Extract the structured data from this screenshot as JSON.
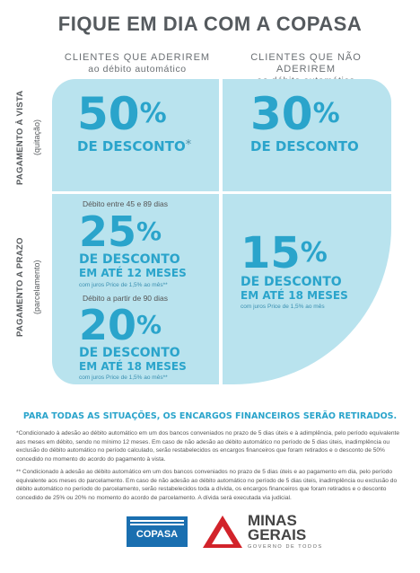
{
  "title": "FIQUE EM DIA COM A COPASA",
  "columns": [
    {
      "line1": "CLIENTES QUE ADERIREM",
      "line2": "ao débito automático"
    },
    {
      "line1": "CLIENTES QUE NÃO ADERIREM",
      "line2": "ao débito automático"
    }
  ],
  "rows": [
    {
      "label": "PAGAMENTO À VISTA",
      "sublabel": "(quitação)"
    },
    {
      "label": "PAGAMENTO A PRAZO",
      "sublabel": "(parcelamento)"
    }
  ],
  "cells": {
    "vista_adere": {
      "pct": "50",
      "sign": "%",
      "desc": "DE DESCONTO",
      "star": "*"
    },
    "vista_nao": {
      "pct": "30",
      "sign": "%",
      "desc": "DE DESCONTO"
    },
    "prazo_adere_1": {
      "note": "Débito entre 45 e 89 dias",
      "pct": "25",
      "sign": "%",
      "desc": "DE DESCONTO",
      "term": "EM ATÉ 12 MESES",
      "juros": "com juros Price de 1,5% ao mês**"
    },
    "prazo_adere_2": {
      "note": "Débito a partir de 90 dias",
      "pct": "20",
      "sign": "%",
      "desc": "DE DESCONTO",
      "term": "EM ATÉ 18 MESES",
      "juros": "com juros Price de 1,5% ao mês**"
    },
    "prazo_nao": {
      "pct": "15",
      "sign": "%",
      "desc": "DE DESCONTO",
      "term": "EM ATÉ 18 MESES",
      "juros": "com juros Price de 1,5% ao mês"
    }
  },
  "banner": "PARA TODAS AS SITUAÇÕES, OS ENCARGOS FINANCEIROS SERÃO RETIRADOS.",
  "footnotes": [
    "*Condicionado à adesão ao débito automático em um dos bancos conveniados no prazo de 5 dias úteis e à adimplência, pelo período equivalente aos meses em débito, sendo no mínimo 12 meses. Em caso de não adesão ao débito automático no período de 5 dias úteis, inadimplência ou exclusão do débito automático no período calculado, serão restabelecidos os encargos financeiros que foram retirados e o desconto de 50% concedido no momento do acordo do pagamento à vista.",
    "** Condicionado à adesão ao débito automático em um dos bancos conveniados no prazo de 5 dias úteis e ao pagamento em dia, pelo período equivalente aos meses do parcelamento. Em caso de não adesão ao débito automático no período de 5 dias úteis, inadimplência ou exclusão do débito automático no período do parcelamento, serão restabelecidos toda a dívida, os encargos financeiros que foram retirados e o desconto concedido de 25% ou 20% no momento do acordo de parcelamento. A dívida será executada via judicial."
  ],
  "logos": {
    "copasa": "COPASA",
    "minas_line1": "MINAS",
    "minas_line2": "GERAIS",
    "minas_tagline": "GOVERNO DE TODOS"
  },
  "colors": {
    "panel": "#b9e3ee",
    "accent": "#2aa4cb",
    "copasa_blue": "#1a6fb0",
    "minas_red": "#d2232a"
  }
}
